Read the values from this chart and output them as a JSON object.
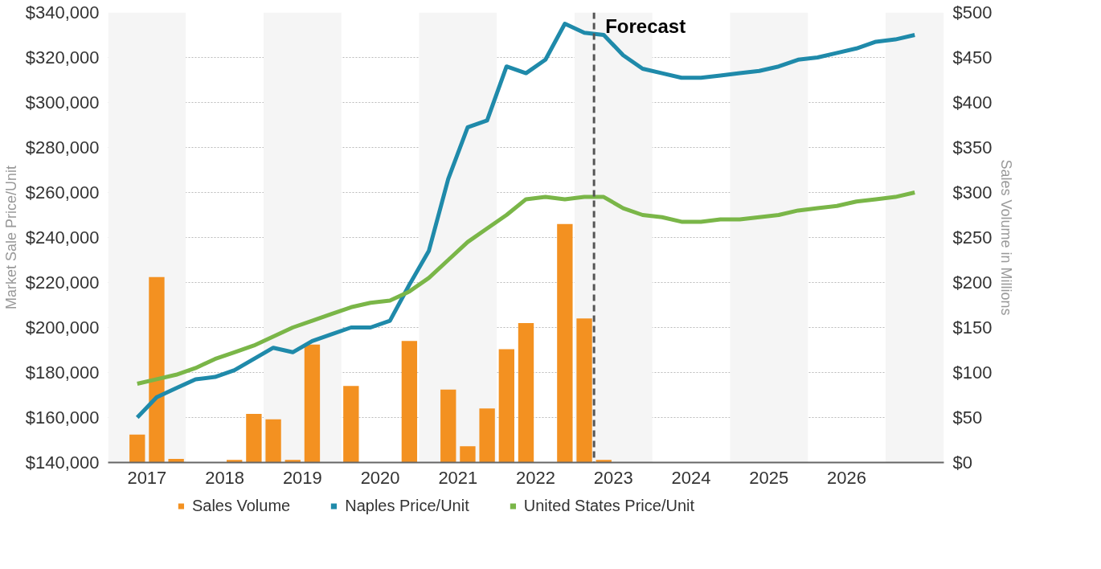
{
  "chart_data": {
    "type": "line",
    "x": [
      2017.375,
      2017.625,
      2017.875,
      2018.125,
      2018.375,
      2018.625,
      2018.875,
      2019.125,
      2019.375,
      2019.625,
      2019.875,
      2020.125,
      2020.375,
      2020.625,
      2020.875,
      2021.125,
      2021.375,
      2021.625,
      2021.875,
      2022.125,
      2022.375,
      2022.625,
      2022.875,
      2023.125,
      2023.375,
      2023.625,
      2023.875,
      2024.125,
      2024.375,
      2024.625,
      2024.875,
      2025.125,
      2025.375,
      2025.625,
      2025.875,
      2026.125,
      2026.375,
      2026.625,
      2026.875,
      2027.125,
      2027.375
    ],
    "series": [
      {
        "name": "Sales Volume",
        "type": "bar",
        "axis": "y2",
        "color": "#f39121",
        "values": [
          31,
          206,
          4,
          null,
          null,
          3,
          54,
          48,
          3,
          131,
          null,
          85,
          null,
          null,
          135,
          null,
          81,
          18,
          60,
          126,
          155,
          null,
          265,
          160,
          3,
          null,
          null,
          null,
          null,
          null,
          null,
          null,
          null,
          null,
          null,
          null,
          null,
          null,
          null,
          null,
          null
        ]
      },
      {
        "name": "Naples Price/Unit",
        "color": "#1f8aaa",
        "values": [
          160000,
          169000,
          173000,
          177000,
          178000,
          181000,
          186000,
          191000,
          189000,
          194000,
          197000,
          200000,
          200000,
          203000,
          219000,
          234000,
          266000,
          289000,
          292000,
          316000,
          313000,
          319000,
          335000,
          331000,
          330000,
          321000,
          315000,
          313000,
          311000,
          311000,
          312000,
          313000,
          314000,
          316000,
          319000,
          320000,
          322000,
          324000,
          327000,
          328000,
          330000
        ]
      },
      {
        "name": "United States Price/Unit",
        "color": "#7ab648",
        "values": [
          175000,
          177000,
          179000,
          182000,
          186000,
          189000,
          192000,
          196000,
          200000,
          203000,
          206000,
          209000,
          211000,
          212000,
          216000,
          222000,
          230000,
          238000,
          244000,
          250000,
          257000,
          258000,
          257000,
          258000,
          258000,
          253000,
          250000,
          249000,
          247000,
          247000,
          248000,
          248000,
          249000,
          250000,
          252000,
          253000,
          254000,
          256000,
          257000,
          258000,
          260000
        ]
      }
    ],
    "ylabel": "Market Sale Price/Unit",
    "y2label": "Sales Volume in Millions",
    "xlim": [
      2017,
      2027.75
    ],
    "xticks": [
      {
        "value": 2017.5,
        "label": "2017"
      },
      {
        "value": 2018.5,
        "label": "2018"
      },
      {
        "value": 2019.5,
        "label": "2019"
      },
      {
        "value": 2020.5,
        "label": "2020"
      },
      {
        "value": 2021.5,
        "label": "2021"
      },
      {
        "value": 2022.5,
        "label": "2022"
      },
      {
        "value": 2023.5,
        "label": "2023"
      },
      {
        "value": 2024.5,
        "label": "2024"
      },
      {
        "value": 2025.5,
        "label": "2025"
      },
      {
        "value": 2026.5,
        "label": "2026"
      }
    ],
    "ylim": [
      140000,
      340000
    ],
    "yticks": [
      {
        "value": 140000,
        "label": "$140,000"
      },
      {
        "value": 160000,
        "label": "$160,000"
      },
      {
        "value": 180000,
        "label": "$180,000"
      },
      {
        "value": 200000,
        "label": "$200,000"
      },
      {
        "value": 220000,
        "label": "$220,000"
      },
      {
        "value": 240000,
        "label": "$240,000"
      },
      {
        "value": 260000,
        "label": "$260,000"
      },
      {
        "value": 280000,
        "label": "$280,000"
      },
      {
        "value": 300000,
        "label": "$300,000"
      },
      {
        "value": 320000,
        "label": "$320,000"
      },
      {
        "value": 340000,
        "label": "$340,000"
      }
    ],
    "y2lim": [
      0,
      500
    ],
    "y2ticks": [
      {
        "value": 0,
        "label": "$0"
      },
      {
        "value": 50,
        "label": "$50"
      },
      {
        "value": 100,
        "label": "$100"
      },
      {
        "value": 150,
        "label": "$150"
      },
      {
        "value": 200,
        "label": "$200"
      },
      {
        "value": 250,
        "label": "$250"
      },
      {
        "value": 300,
        "label": "$300"
      },
      {
        "value": 350,
        "label": "$350"
      },
      {
        "value": 400,
        "label": "$400"
      },
      {
        "value": 450,
        "label": "$450"
      },
      {
        "value": 500,
        "label": "$500"
      }
    ],
    "ref_lines": [
      {
        "axis": "x",
        "value": 2023.25,
        "label": "Forecast",
        "color": "#555555",
        "line_style": "dashed"
      }
    ],
    "bands": [
      {
        "axis": "x",
        "from": 2017,
        "to": 2018,
        "color": "#f5f5f5"
      },
      {
        "axis": "x",
        "from": 2019,
        "to": 2020,
        "color": "#f5f5f5"
      },
      {
        "axis": "x",
        "from": 2021,
        "to": 2022,
        "color": "#f5f5f5"
      },
      {
        "axis": "x",
        "from": 2023,
        "to": 2024,
        "color": "#f5f5f5"
      },
      {
        "axis": "x",
        "from": 2025,
        "to": 2026,
        "color": "#f5f5f5"
      },
      {
        "axis": "x",
        "from": 2027,
        "to": 2027.75,
        "color": "#f5f5f5"
      }
    ],
    "grid": "y",
    "legend": "bottom",
    "marker": "none"
  }
}
